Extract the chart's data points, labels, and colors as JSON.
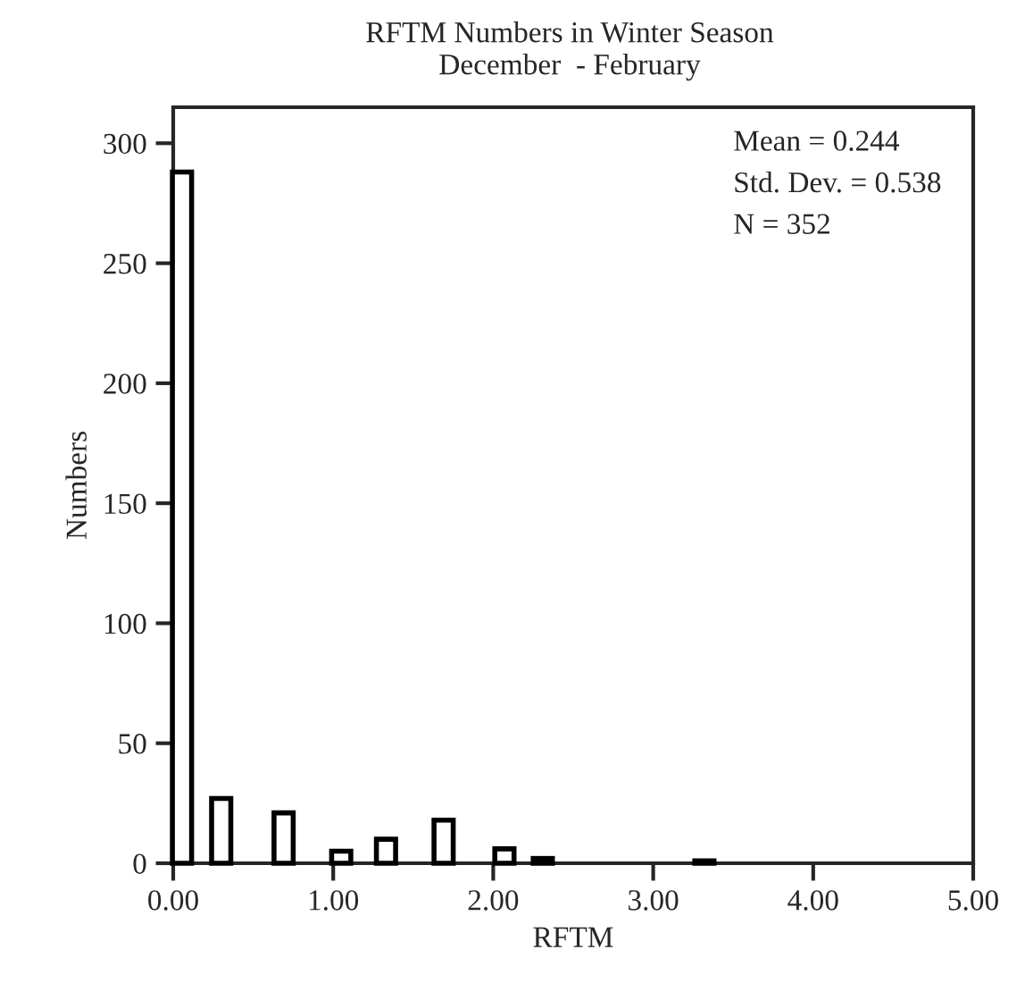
{
  "chart_data": {
    "type": "bar",
    "title": "RFTM Numbers in Winter Season",
    "subtitle": "December  - February",
    "xlabel": "RFTM",
    "ylabel": "Numbers",
    "x": [
      0.055,
      0.3,
      0.69,
      1.05,
      1.33,
      1.69,
      2.07,
      2.31,
      3.32
    ],
    "values": [
      288,
      27,
      21,
      5,
      10,
      18,
      6,
      2,
      1
    ],
    "color": "#ffffff",
    "xlim": [
      0,
      5
    ],
    "xticks": [
      {
        "value": 0,
        "label": "0.00"
      },
      {
        "value": 1,
        "label": "1.00"
      },
      {
        "value": 2,
        "label": "2.00"
      },
      {
        "value": 3,
        "label": "3.00"
      },
      {
        "value": 4,
        "label": "4.00"
      },
      {
        "value": 5,
        "label": "5.00"
      }
    ],
    "ylim": [
      0,
      315
    ],
    "yticks": [
      0,
      50,
      100,
      150,
      200,
      250,
      300
    ],
    "annotations": [
      "Mean = 0.244",
      "Std. Dev. = 0.538",
      "N = 352"
    ],
    "grid": false,
    "legend": false
  }
}
